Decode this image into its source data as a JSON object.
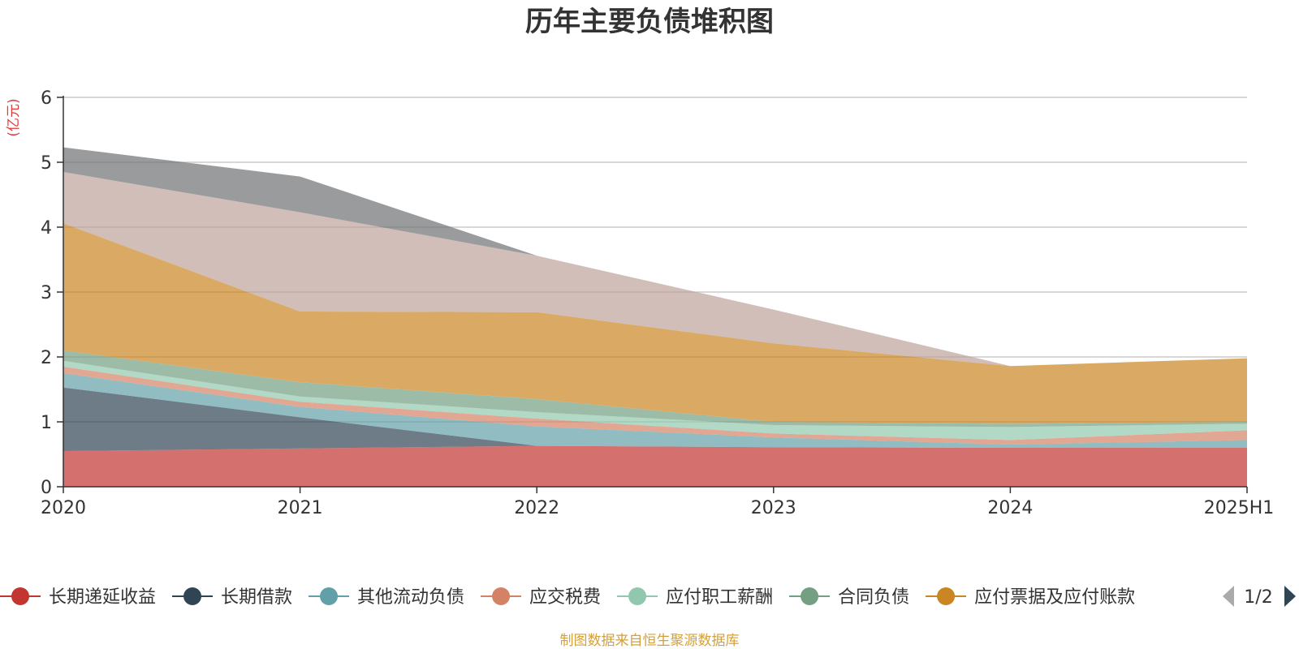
{
  "chart_data": {
    "type": "area",
    "title": "历年主要负债堆积图",
    "unit_label": "(亿元)",
    "categories": [
      "2020",
      "2021",
      "2022",
      "2023",
      "2024",
      "2025H1"
    ],
    "ylim": [
      0,
      6
    ],
    "yticks": [
      "0",
      "1",
      "2",
      "3",
      "4",
      "5",
      "6"
    ],
    "grid": true,
    "legend_position": "bottom",
    "stacked": true,
    "series": [
      {
        "name": "长期递延收益",
        "color": "#c23531",
        "legend_visible": true,
        "values": [
          0.55,
          0.59,
          0.63,
          0.61,
          0.6,
          0.6
        ]
      },
      {
        "name": "长期借款",
        "color": "#2f4554",
        "legend_visible": true,
        "values": [
          0.98,
          0.48,
          0.0,
          0.0,
          0.0,
          0.0
        ]
      },
      {
        "name": "其他流动负债",
        "color": "#61a0a8",
        "legend_visible": true,
        "values": [
          0.22,
          0.16,
          0.3,
          0.15,
          0.05,
          0.12
        ]
      },
      {
        "name": "应交税费",
        "color": "#d48265",
        "legend_visible": true,
        "values": [
          0.1,
          0.08,
          0.12,
          0.06,
          0.07,
          0.15
        ]
      },
      {
        "name": "应付职工薪酬",
        "color": "#91c7ae",
        "legend_visible": true,
        "values": [
          0.09,
          0.08,
          0.1,
          0.13,
          0.2,
          0.1
        ]
      },
      {
        "name": "合同负债",
        "color": "#749f83",
        "legend_visible": true,
        "values": [
          0.16,
          0.22,
          0.2,
          0.05,
          0.05,
          0.03
        ]
      },
      {
        "name": "应付票据及应付账款",
        "color": "#ca8622",
        "legend_visible": true,
        "values": [
          1.96,
          1.09,
          1.34,
          1.21,
          0.89,
          0.98
        ]
      },
      {
        "name": "",
        "color": "#bda29a",
        "legend_visible": false,
        "values": [
          0.79,
          1.53,
          0.87,
          0.52,
          0.0,
          0.0
        ]
      },
      {
        "name": "",
        "color": "#6e7074",
        "legend_visible": false,
        "values": [
          0.38,
          0.55,
          0.0,
          0.0,
          0.0,
          0.0
        ]
      }
    ],
    "annotation": "制图数据来自恒生聚源数据库"
  },
  "legend": {
    "pager_text": "1/2"
  }
}
